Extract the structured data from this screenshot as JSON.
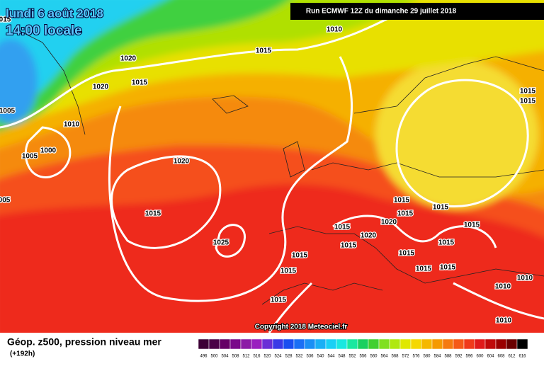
{
  "header": {
    "date": "lundi 6 août 2018",
    "time": "14:00 locale",
    "run": "Run ECMWF 12Z du dimanche 29 juillet 2018",
    "copyright": "Copyright 2018 Meteociel.fr"
  },
  "footer": {
    "title": "Géop. z500, pression niveau mer",
    "lead": "(+192h)"
  },
  "legend": {
    "labels": [
      496,
      500,
      504,
      508,
      512,
      516,
      520,
      524,
      528,
      532,
      536,
      540,
      544,
      548,
      552,
      556,
      560,
      564,
      568,
      572,
      576,
      580,
      584,
      588,
      592,
      596,
      600,
      604,
      608,
      612,
      616
    ],
    "colors": [
      "#3d0036",
      "#4b0047",
      "#660066",
      "#7a0a8a",
      "#8c1aa6",
      "#9a1fbf",
      "#6a2fd6",
      "#3a3ae6",
      "#1a4ff0",
      "#1a6ff5",
      "#1a8ff5",
      "#1aaff5",
      "#1ad0f5",
      "#1ae8e0",
      "#1ae8a0",
      "#1ad060",
      "#40d030",
      "#80e020",
      "#b0e810",
      "#e0e800",
      "#f5d800",
      "#f5b800",
      "#f59a00",
      "#f57a10",
      "#f55a18",
      "#f03a1a",
      "#e01a1a",
      "#c00a0a",
      "#9a0000",
      "#6a0000",
      "#000000"
    ]
  },
  "isobar_labels": [
    "015",
    "1010",
    "1015",
    "1020",
    "1015",
    "1020",
    "1010",
    "1005",
    "1005",
    "1000",
    "1020",
    "1015",
    "1025",
    "005",
    "1015",
    "1015",
    "1015",
    "1015",
    "1015",
    "1020",
    "1015",
    "1020",
    "1015",
    "1015",
    "1015",
    "1015",
    "1015",
    "1015",
    "1015",
    "1015",
    "1015",
    "1010",
    "1010",
    "1010"
  ]
}
